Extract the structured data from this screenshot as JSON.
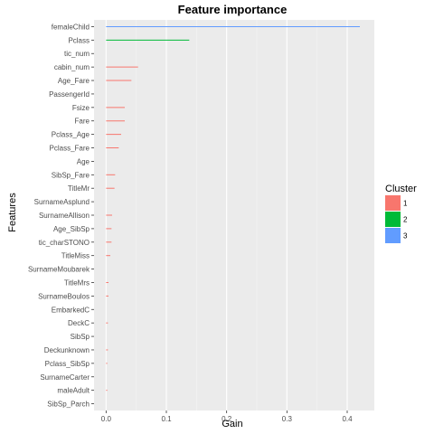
{
  "chart_data": {
    "type": "bar",
    "orientation": "horizontal",
    "title": "Feature importance",
    "xlabel": "Gain",
    "ylabel": "Features",
    "xlim": [
      -0.02,
      0.445
    ],
    "xticks": [
      0.0,
      0.1,
      0.2,
      0.3,
      0.4
    ],
    "xtick_labels": [
      "0.0",
      "0.1",
      "0.2",
      "0.3",
      "0.4"
    ],
    "grid": true,
    "legend": {
      "title": "Cluster",
      "position": "right",
      "entries": [
        {
          "label": "1",
          "color": "#F8766D"
        },
        {
          "label": "2",
          "color": "#00BA38"
        },
        {
          "label": "3",
          "color": "#619CFF"
        }
      ]
    },
    "features": [
      {
        "name": "femaleChild",
        "gain": 0.421,
        "cluster": "3"
      },
      {
        "name": "Pclass",
        "gain": 0.138,
        "cluster": "2"
      },
      {
        "name": "tic_num",
        "gain": 0.0,
        "cluster": "1"
      },
      {
        "name": "cabin_num",
        "gain": 0.053,
        "cluster": "1"
      },
      {
        "name": "Age_Fare",
        "gain": 0.042,
        "cluster": "1"
      },
      {
        "name": "PassengerId",
        "gain": 0.0,
        "cluster": "1"
      },
      {
        "name": "Fsize",
        "gain": 0.031,
        "cluster": "1"
      },
      {
        "name": "Fare",
        "gain": 0.031,
        "cluster": "1"
      },
      {
        "name": "Pclass_Age",
        "gain": 0.025,
        "cluster": "1"
      },
      {
        "name": "Pclass_Fare",
        "gain": 0.021,
        "cluster": "1"
      },
      {
        "name": "Age",
        "gain": 0.0,
        "cluster": "1"
      },
      {
        "name": "SibSp_Fare",
        "gain": 0.015,
        "cluster": "1"
      },
      {
        "name": "TitleMr",
        "gain": 0.014,
        "cluster": "1"
      },
      {
        "name": "SurnameAsplund",
        "gain": 0.0,
        "cluster": "1"
      },
      {
        "name": "SurnameAllison",
        "gain": 0.01,
        "cluster": "1"
      },
      {
        "name": "Age_SibSp",
        "gain": 0.009,
        "cluster": "1"
      },
      {
        "name": "tic_charSTONO",
        "gain": 0.009,
        "cluster": "1"
      },
      {
        "name": "TitleMiss",
        "gain": 0.007,
        "cluster": "1"
      },
      {
        "name": "SurnameMoubarek",
        "gain": 0.0,
        "cluster": "1"
      },
      {
        "name": "TitleMrs",
        "gain": 0.004,
        "cluster": "1"
      },
      {
        "name": "SurnameBoulos",
        "gain": 0.004,
        "cluster": "1"
      },
      {
        "name": "EmbarkedC",
        "gain": 0.0,
        "cluster": "1"
      },
      {
        "name": "DeckC",
        "gain": 0.003,
        "cluster": "1"
      },
      {
        "name": "SibSp",
        "gain": 0.0,
        "cluster": "1"
      },
      {
        "name": "Deckunknown",
        "gain": 0.003,
        "cluster": "1"
      },
      {
        "name": "Pclass_SibSp",
        "gain": 0.002,
        "cluster": "1"
      },
      {
        "name": "SurnameCarter",
        "gain": 0.0,
        "cluster": "1"
      },
      {
        "name": "maleAdult",
        "gain": 0.002,
        "cluster": "1"
      },
      {
        "name": "SibSp_Parch",
        "gain": 0.0,
        "cluster": "1"
      }
    ]
  }
}
